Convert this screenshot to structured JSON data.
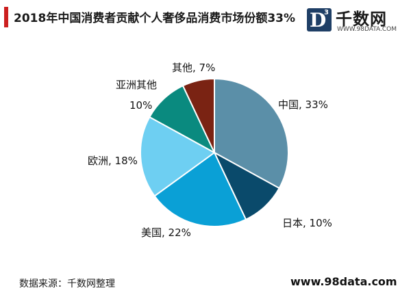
{
  "title": "2018年中国消费者贡献个人奢侈品消费市场份额33%",
  "logo": {
    "mark": "D",
    "superscript": "3",
    "name": "千数网",
    "url": "WWW.98DATA.COM"
  },
  "source": "数据来源：千数网整理",
  "site": "www.98data.com",
  "chart_data": {
    "type": "pie",
    "title": "2018年中国消费者贡献个人奢侈品消费市场份额33%",
    "unit": "%",
    "start_angle_deg": 0,
    "direction": "clockwise",
    "legend": "none",
    "slices": [
      {
        "name": "中国",
        "value": 33,
        "label": "中国, 33%",
        "color": "#5b8fa8"
      },
      {
        "name": "日本",
        "value": 10,
        "label": "日本, 10%",
        "color": "#0a4a6b"
      },
      {
        "name": "美国",
        "value": 22,
        "label": "美国, 22%",
        "color": "#0aa0d6"
      },
      {
        "name": "欧洲",
        "value": 18,
        "label": "欧洲, 18%",
        "color": "#6ecff2"
      },
      {
        "name": "亚洲其他",
        "value": 10,
        "label_lines": [
          "亚洲其他",
          "10%"
        ],
        "color": "#0a8a7f"
      },
      {
        "name": "其他",
        "value": 7,
        "label": "其他, 7%",
        "color": "#7a2313"
      }
    ]
  }
}
